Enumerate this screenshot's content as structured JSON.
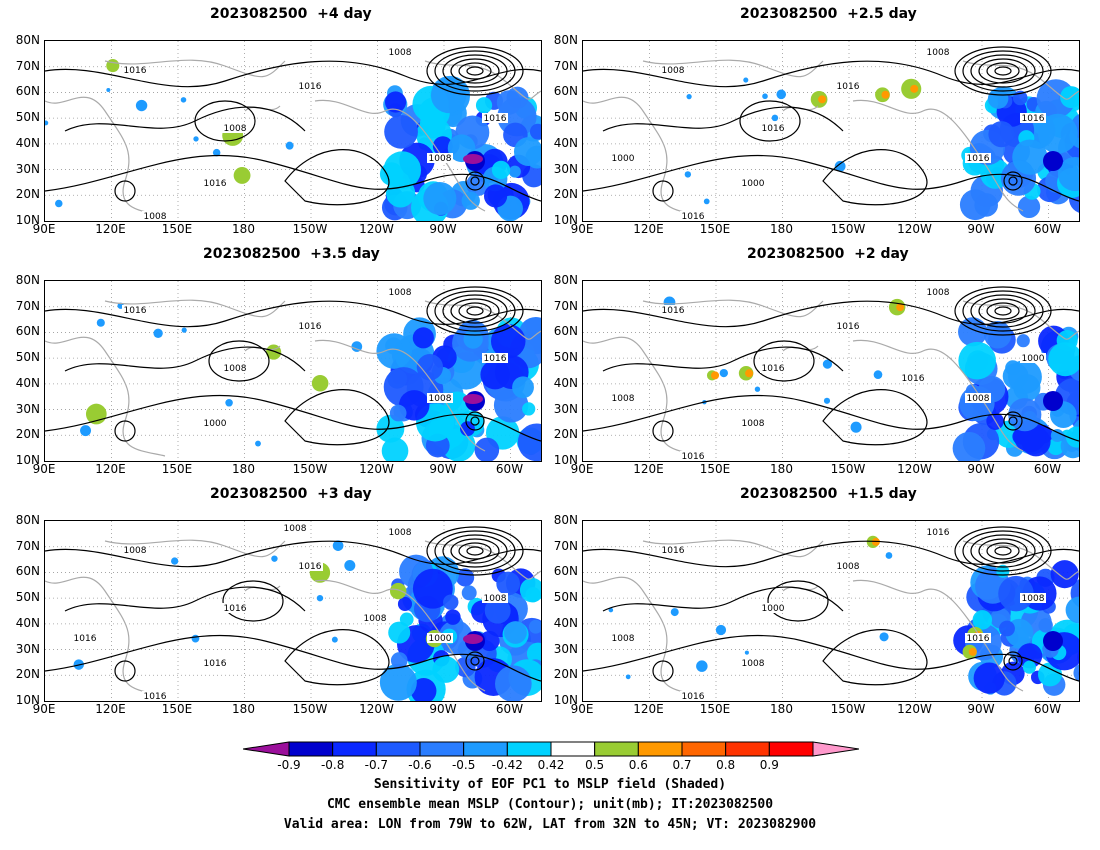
{
  "panels": [
    {
      "title": "2023082500  +4 day",
      "contour_labels": [
        "1008",
        "1016",
        "1016",
        "1008",
        "1016",
        "1016",
        "1008",
        "1008"
      ]
    },
    {
      "title": "2023082500  +2.5 day",
      "contour_labels": [
        "1008",
        "1008",
        "1016",
        "1016",
        "1000",
        "1016",
        "1016",
        "1016",
        "1000"
      ]
    },
    {
      "title": "2023082500  +3.5 day",
      "contour_labels": [
        "1008",
        "1016",
        "1016",
        "1008",
        "1000",
        "1016",
        "1008"
      ]
    },
    {
      "title": "2023082500  +2 day",
      "contour_labels": [
        "1008",
        "1016",
        "1016",
        "1016",
        "1008",
        "1000",
        "1008",
        "1016",
        "1008",
        "1016"
      ]
    },
    {
      "title": "2023082500  +3 day",
      "contour_labels": [
        "1008",
        "1008",
        "1016",
        "1016",
        "1016",
        "1008",
        "1000",
        "1016",
        "1016",
        "1008",
        "1008"
      ]
    },
    {
      "title": "2023082500  +1.5 day",
      "contour_labels": [
        "1016",
        "1016",
        "1008",
        "1000",
        "1008",
        "1008",
        "1016",
        "1016",
        "1008"
      ]
    }
  ],
  "lat_labels": [
    "80N",
    "70N",
    "60N",
    "50N",
    "40N",
    "30N",
    "20N",
    "10N"
  ],
  "lon_labels": [
    "90E",
    "120E",
    "150E",
    "180",
    "150W",
    "120W",
    "90W",
    "60W"
  ],
  "colorbar": {
    "ticks": [
      "-0.9",
      "-0.8",
      "-0.7",
      "-0.6",
      "-0.5",
      "-0.42",
      "0.42",
      "0.5",
      "0.6",
      "0.7",
      "0.8",
      "0.9"
    ],
    "colors": [
      "#9b0f9b",
      "#0000cd",
      "#0a28ff",
      "#1e5aff",
      "#2a7dff",
      "#1e9bff",
      "#00d2ff",
      "#ffffff",
      "#99cc33",
      "#ff9900",
      "#ff6600",
      "#ff3300",
      "#ff0000",
      "#ff99cc"
    ]
  },
  "caption": [
    "Sensitivity of EOF PC1 to MSLP field (Shaded)",
    "CMC ensemble mean MSLP (Contour); unit(mb); IT:2023082500",
    "Valid area: LON from 79W to 62W, LAT from 32N to 45N; VT: 2023082900"
  ]
}
